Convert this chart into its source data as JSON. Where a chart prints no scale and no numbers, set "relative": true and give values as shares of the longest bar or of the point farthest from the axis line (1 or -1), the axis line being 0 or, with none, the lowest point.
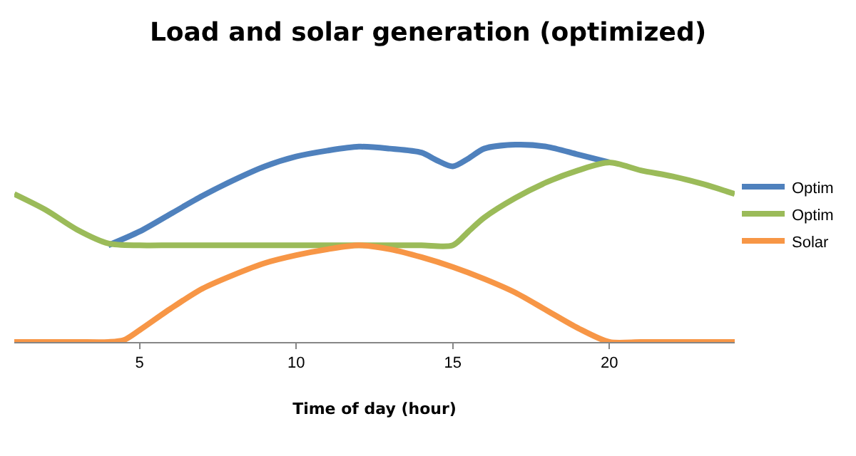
{
  "chart_data": {
    "type": "line",
    "title": "Load and solar generation (optimized)",
    "xlabel": "Time of day (hour)",
    "relative": true,
    "xlim": [
      1,
      24
    ],
    "xticks": [
      5,
      10,
      15,
      20
    ],
    "legend": "right",
    "marker": "none",
    "line_style": "solid",
    "series": [
      {
        "name": "Optim",
        "color": "#4f81bd",
        "x": [
          4,
          5,
          6,
          7,
          8,
          9,
          10,
          11,
          12,
          13,
          14,
          14.5,
          15,
          15.5,
          16,
          17,
          18,
          19,
          20
        ],
        "values": [
          0.49,
          0.56,
          0.65,
          0.74,
          0.82,
          0.89,
          0.94,
          0.97,
          0.99,
          0.98,
          0.96,
          0.92,
          0.89,
          0.93,
          0.98,
          1,
          0.99,
          0.95,
          0.91
        ]
      },
      {
        "name": "Optim",
        "color": "#9bbb59",
        "x": [
          1,
          2,
          3,
          4,
          5,
          6,
          7,
          8,
          9,
          10,
          11,
          12,
          13,
          14,
          15,
          15.5,
          16,
          17,
          18,
          19,
          20,
          21,
          22,
          23,
          24
        ],
        "values": [
          0.75,
          0.67,
          0.57,
          0.5,
          0.49,
          0.49,
          0.49,
          0.49,
          0.49,
          0.49,
          0.49,
          0.49,
          0.49,
          0.49,
          0.49,
          0.56,
          0.63,
          0.73,
          0.81,
          0.87,
          0.91,
          0.87,
          0.84,
          0.8,
          0.75
        ]
      },
      {
        "name": "Solar",
        "color": "#f79646",
        "x": [
          1,
          2,
          3,
          4,
          4.5,
          5,
          6,
          7,
          8,
          9,
          10,
          11,
          12,
          13,
          14,
          15,
          16,
          17,
          18,
          19,
          20,
          21,
          22,
          23,
          24
        ],
        "values": [
          0,
          0,
          0,
          0,
          0.01,
          0.06,
          0.17,
          0.27,
          0.34,
          0.4,
          0.44,
          0.47,
          0.49,
          0.47,
          0.43,
          0.38,
          0.32,
          0.25,
          0.16,
          0.07,
          0,
          0,
          0,
          0,
          0
        ]
      }
    ]
  }
}
